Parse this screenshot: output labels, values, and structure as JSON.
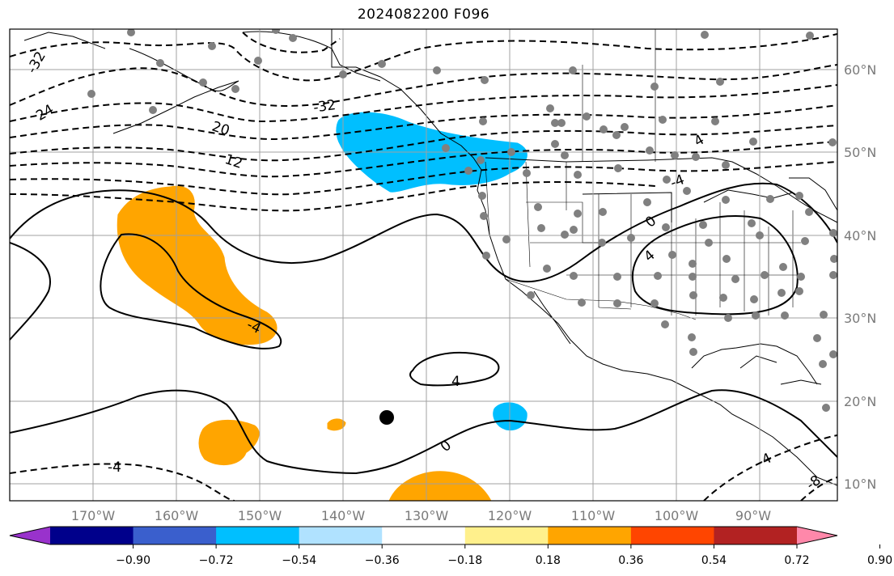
{
  "title": "2024082200 F096",
  "map": {
    "lon_ticks": [
      "170°W",
      "160°W",
      "150°W",
      "140°W",
      "130°W",
      "120°W",
      "110°W",
      "100°W",
      "90°W"
    ],
    "lat_ticks": [
      "60°N",
      "50°N",
      "40°N",
      "30°N",
      "20°N",
      "10°N"
    ],
    "contour_labels": [
      "-32",
      "24",
      "20",
      "12",
      "-32",
      "-4",
      "4",
      "-4",
      "0",
      "4",
      "0",
      "-4",
      "-4",
      "-8",
      "4"
    ],
    "colors": {
      "positive_fill": "#ffa500",
      "negative_fill": "#00bfff",
      "contour": "#000000",
      "grid": "#a0a0a0",
      "station": "#808080",
      "marker": "#000000"
    }
  },
  "colorbar": {
    "colors": [
      "#9932cc",
      "#00008b",
      "#3a5fcd",
      "#00bfff",
      "#b0e2ff",
      "#ffffff",
      "#fff08c",
      "#ffa500",
      "#ff4500",
      "#b22222",
      "#ff88aa"
    ],
    "labels": [
      "−0.90",
      "−0.72",
      "−0.54",
      "−0.36",
      "−0.18",
      "0.18",
      "0.36",
      "0.54",
      "0.72",
      "0.90"
    ]
  }
}
